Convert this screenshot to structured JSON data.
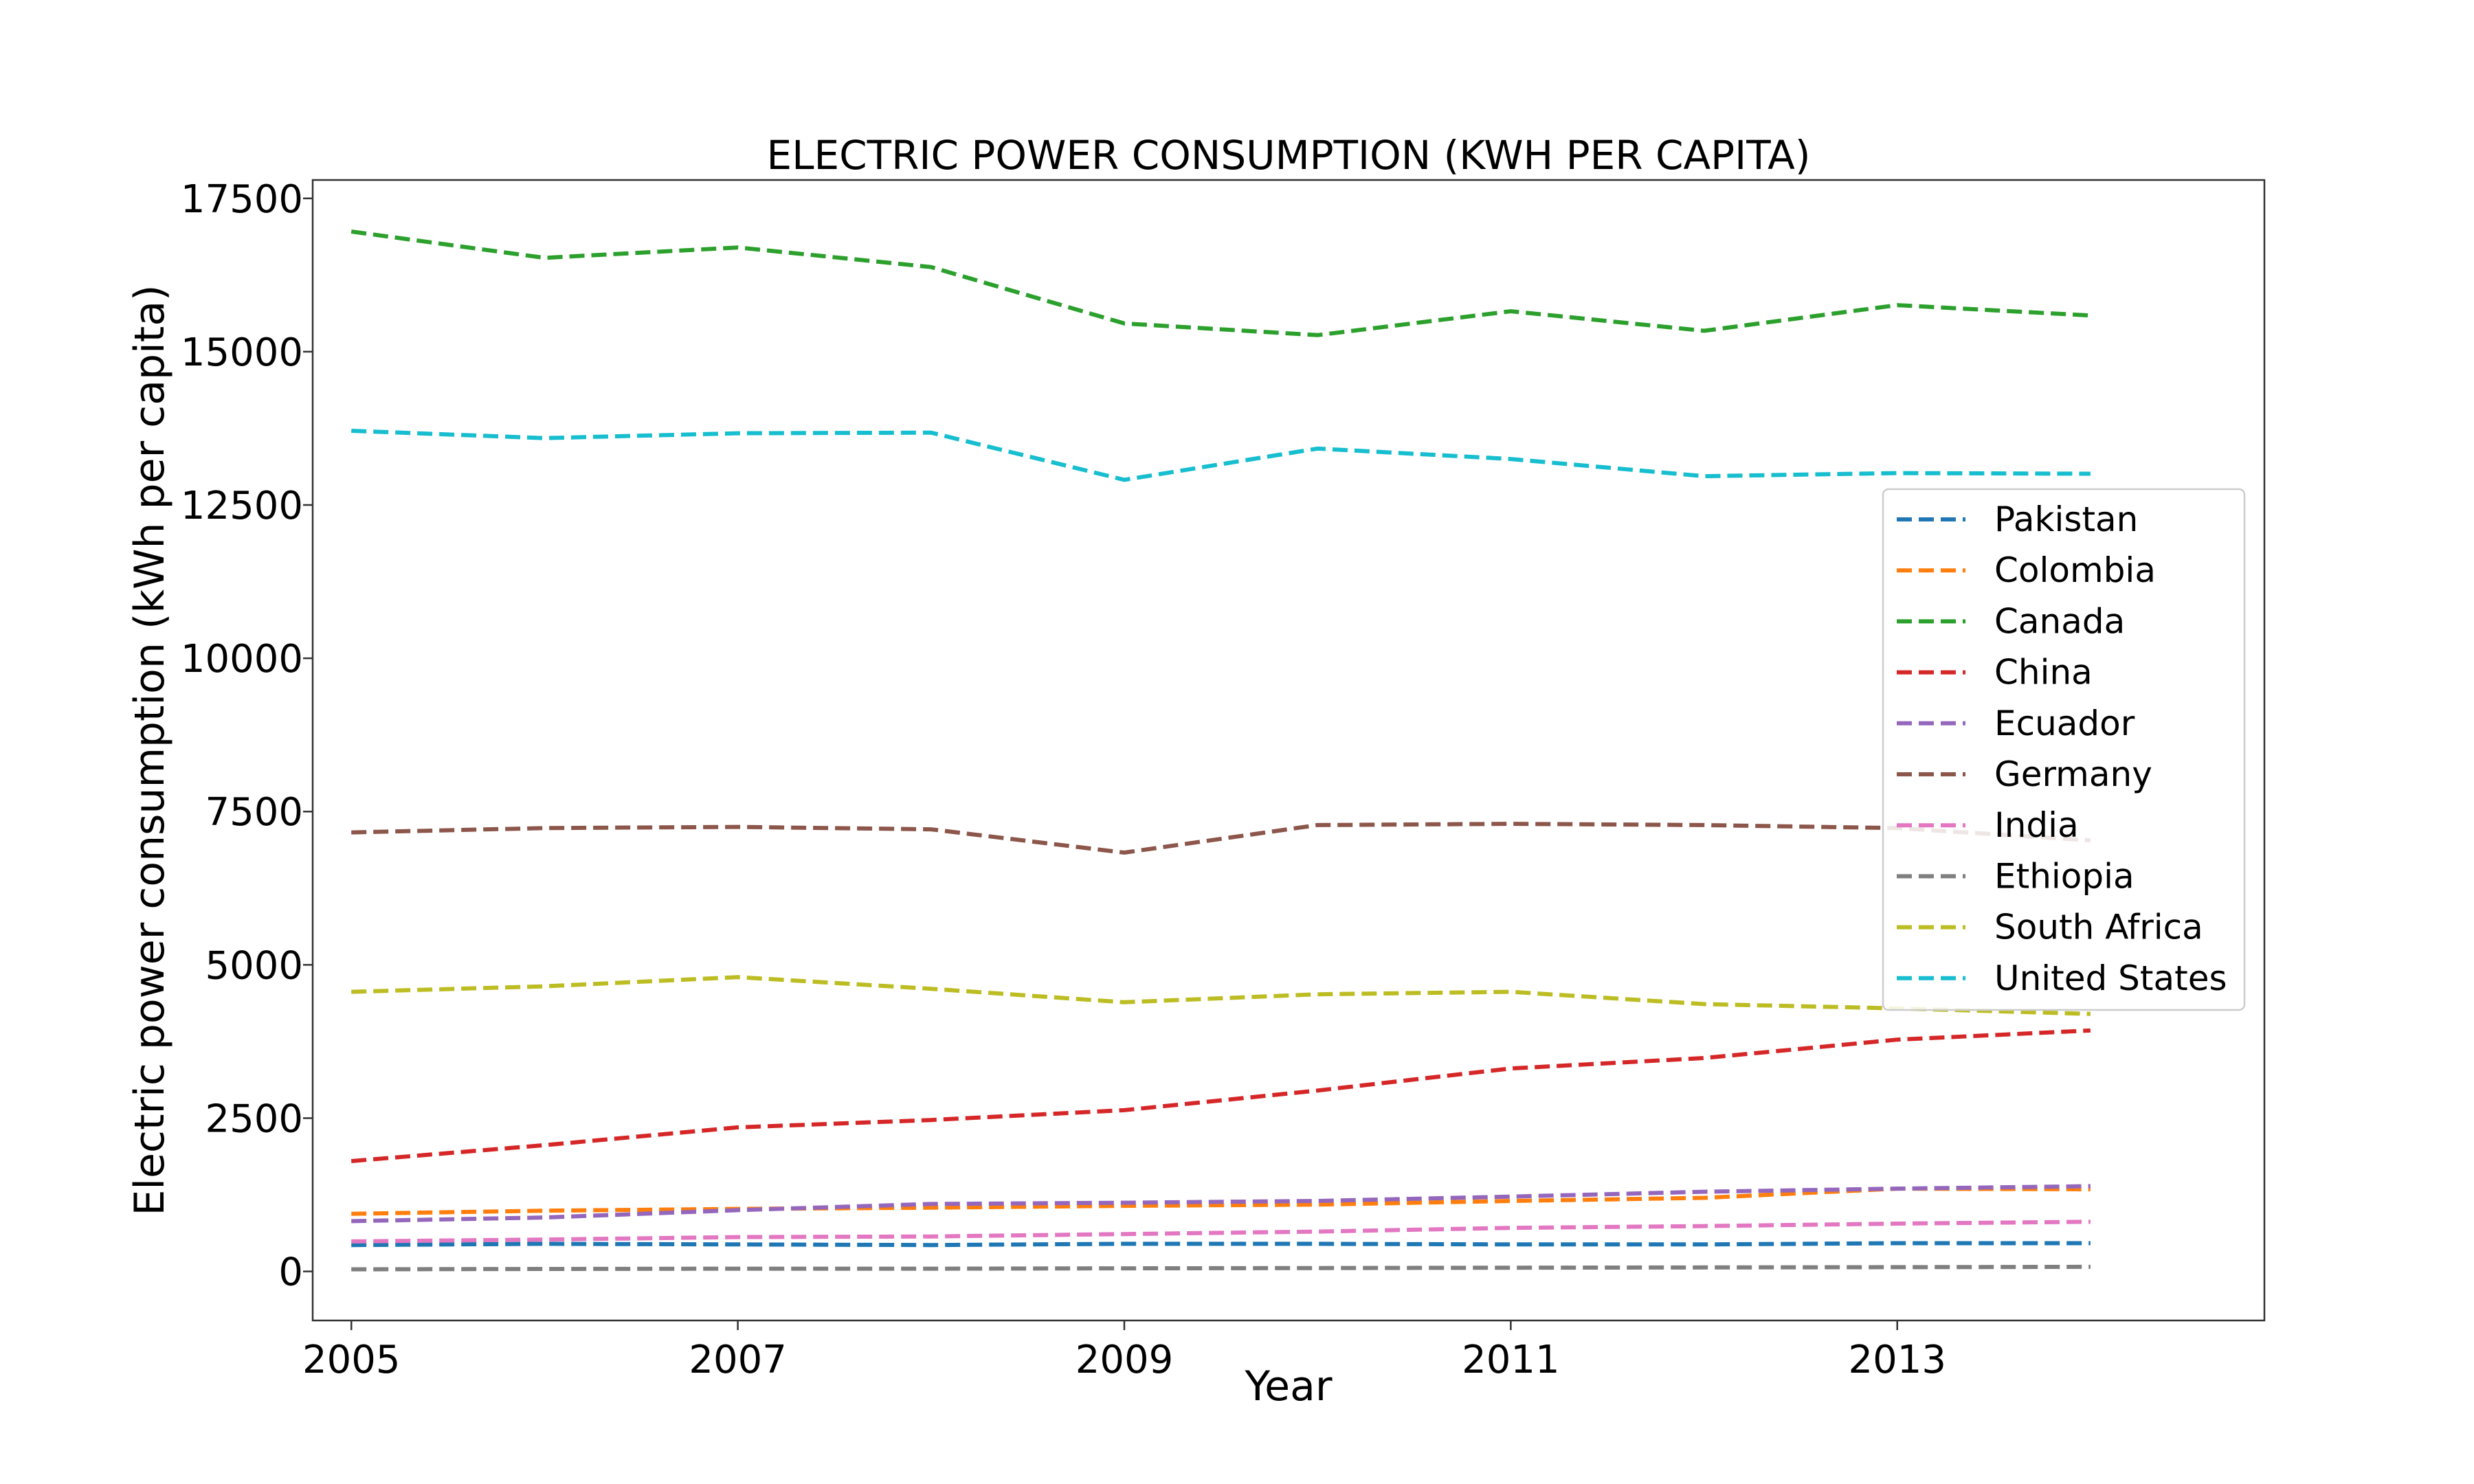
{
  "chart_data": {
    "type": "line",
    "title": "ELECTRIC POWER CONSUMPTION (KWH PER CAPITA)",
    "xlabel": "Year",
    "ylabel": "Electric power consumption (kWh per capita)",
    "x": [
      2005,
      2006,
      2007,
      2008,
      2009,
      2010,
      2011,
      2012,
      2013,
      2014
    ],
    "xlim": [
      2004.8,
      2014.9
    ],
    "ylim": [
      -800,
      17800
    ],
    "xticks": [
      2005,
      2007,
      2009,
      2011,
      2013
    ],
    "yticks": [
      0,
      2500,
      5000,
      7500,
      10000,
      12500,
      15000,
      17500
    ],
    "grid": false,
    "legend_position": "center-right",
    "series": [
      {
        "name": "Pakistan",
        "color": "#1f77b4",
        "values": [
          430,
          450,
          440,
          430,
          450,
          450,
          440,
          440,
          460,
          460
        ]
      },
      {
        "name": "Colombia",
        "color": "#ff7f0e",
        "values": [
          940,
          990,
          1020,
          1040,
          1070,
          1090,
          1150,
          1200,
          1350,
          1340
        ]
      },
      {
        "name": "Canada",
        "color": "#2ca02c",
        "values": [
          16960,
          16530,
          16700,
          16380,
          15460,
          15270,
          15660,
          15340,
          15760,
          15590
        ]
      },
      {
        "name": "China",
        "color": "#d62728",
        "values": [
          1800,
          2060,
          2350,
          2470,
          2630,
          2950,
          3310,
          3480,
          3780,
          3930
        ]
      },
      {
        "name": "Ecuador",
        "color": "#9467bd",
        "values": [
          820,
          880,
          1000,
          1100,
          1120,
          1150,
          1220,
          1300,
          1350,
          1390
        ]
      },
      {
        "name": "Germany",
        "color": "#8c564b",
        "values": [
          7160,
          7230,
          7250,
          7210,
          6830,
          7280,
          7300,
          7280,
          7230,
          7030
        ]
      },
      {
        "name": "India",
        "color": "#e377c2",
        "values": [
          490,
          520,
          560,
          570,
          610,
          650,
          710,
          740,
          780,
          810
        ]
      },
      {
        "name": "Ethiopia",
        "color": "#7f7f7f",
        "values": [
          35,
          40,
          45,
          45,
          50,
          55,
          60,
          65,
          70,
          75
        ]
      },
      {
        "name": "South Africa",
        "color": "#bcbd22",
        "values": [
          4560,
          4650,
          4800,
          4610,
          4390,
          4520,
          4560,
          4360,
          4290,
          4200
        ]
      },
      {
        "name": "United States",
        "color": "#17becf",
        "values": [
          13710,
          13590,
          13670,
          13680,
          12910,
          13420,
          13250,
          12970,
          13020,
          13010
        ]
      }
    ]
  }
}
